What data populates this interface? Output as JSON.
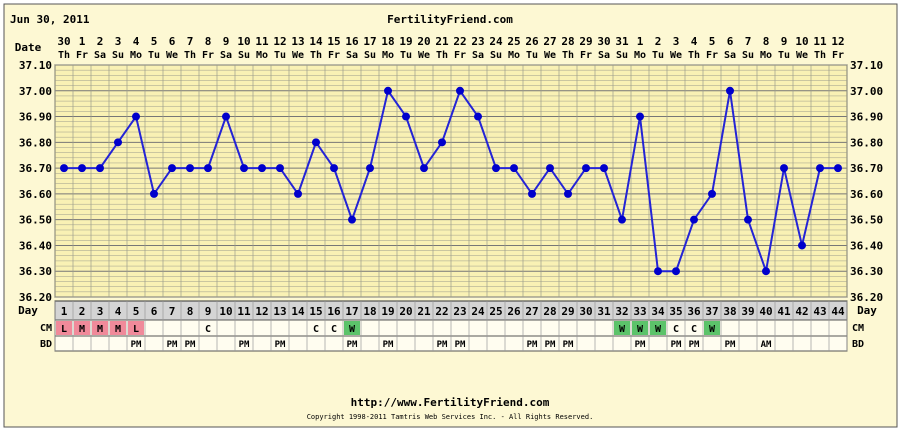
{
  "header": {
    "date": "Jun 30, 2011",
    "site": "FertilityFriend.com"
  },
  "footer": {
    "url": "http://www.FertilityFriend.com",
    "copyright": "Copyright 1998-2011 Tamtris Web Services Inc. - All Rights Reserved."
  },
  "row_labels": {
    "date": "Date",
    "day": "Day",
    "cm": "CM",
    "bd": "BD"
  },
  "colors": {
    "page_bg": "#fdf8d3",
    "plot_bg": "#f9f1b4",
    "grid": "#9c9c8c",
    "line": "#2424d6",
    "point": "#0000cc",
    "day_row": "#d4d4d4",
    "cm_red": "#f08a9a",
    "cm_green": "#5cc36a",
    "row_bg": "#fffdf0",
    "header_blue": "#0000cc"
  },
  "chart_data": {
    "type": "line",
    "title": "",
    "ylim": [
      36.2,
      37.1
    ],
    "yticks": [
      "37.10",
      "37.00",
      "36.90",
      "36.80",
      "36.70",
      "36.60",
      "36.50",
      "36.40",
      "36.30",
      "36.20"
    ],
    "dates": [
      "30",
      "1",
      "2",
      "3",
      "4",
      "5",
      "6",
      "7",
      "8",
      "9",
      "10",
      "11",
      "12",
      "13",
      "14",
      "15",
      "16",
      "17",
      "18",
      "19",
      "20",
      "21",
      "22",
      "23",
      "24",
      "25",
      "26",
      "27",
      "28",
      "29",
      "30",
      "31",
      "1",
      "2",
      "3",
      "4",
      "5",
      "6",
      "7",
      "8",
      "9",
      "10",
      "11",
      "12"
    ],
    "weekdays": [
      "Th",
      "Fr",
      "Sa",
      "Su",
      "Mo",
      "Tu",
      "We",
      "Th",
      "Fr",
      "Sa",
      "Su",
      "Mo",
      "Tu",
      "We",
      "Th",
      "Fr",
      "Sa",
      "Su",
      "Mo",
      "Tu",
      "We",
      "Th",
      "Fr",
      "Sa",
      "Su",
      "Mo",
      "Tu",
      "We",
      "Th",
      "Fr",
      "Sa",
      "Su",
      "Mo",
      "Tu",
      "We",
      "Th",
      "Fr",
      "Sa",
      "Su",
      "Mo",
      "Tu",
      "We",
      "Th",
      "Fr"
    ],
    "days": [
      "1",
      "2",
      "3",
      "4",
      "5",
      "6",
      "7",
      "8",
      "9",
      "10",
      "11",
      "12",
      "13",
      "14",
      "15",
      "16",
      "17",
      "18",
      "19",
      "20",
      "21",
      "22",
      "23",
      "24",
      "25",
      "26",
      "27",
      "28",
      "29",
      "30",
      "31",
      "32",
      "33",
      "34",
      "35",
      "36",
      "37",
      "38",
      "39",
      "40",
      "41",
      "42",
      "43",
      "44"
    ],
    "temps": [
      36.7,
      36.7,
      36.7,
      36.8,
      36.9,
      36.6,
      36.7,
      36.7,
      36.7,
      36.9,
      36.7,
      36.7,
      36.7,
      36.6,
      36.8,
      36.7,
      36.5,
      36.7,
      37.0,
      36.9,
      36.7,
      36.8,
      37.0,
      36.9,
      36.7,
      36.7,
      36.6,
      36.7,
      36.6,
      36.7,
      36.7,
      36.5,
      36.9,
      36.3,
      36.3,
      36.5,
      36.6,
      37.0,
      36.5,
      36.3,
      36.7,
      36.4,
      36.7,
      36.7
    ],
    "cm": [
      {
        "day": 1,
        "code": "L",
        "color": "red"
      },
      {
        "day": 2,
        "code": "M",
        "color": "red"
      },
      {
        "day": 3,
        "code": "M",
        "color": "red"
      },
      {
        "day": 4,
        "code": "M",
        "color": "red"
      },
      {
        "day": 5,
        "code": "L",
        "color": "red"
      },
      {
        "day": 9,
        "code": "C",
        "color": "none"
      },
      {
        "day": 15,
        "code": "C",
        "color": "none"
      },
      {
        "day": 16,
        "code": "C",
        "color": "none"
      },
      {
        "day": 17,
        "code": "W",
        "color": "green"
      },
      {
        "day": 32,
        "code": "W",
        "color": "green"
      },
      {
        "day": 33,
        "code": "W",
        "color": "green"
      },
      {
        "day": 34,
        "code": "W",
        "color": "green"
      },
      {
        "day": 35,
        "code": "C",
        "color": "none"
      },
      {
        "day": 36,
        "code": "C",
        "color": "none"
      },
      {
        "day": 37,
        "code": "W",
        "color": "green"
      }
    ],
    "bd": [
      {
        "day": 5,
        "label": "PM"
      },
      {
        "day": 7,
        "label": "PM"
      },
      {
        "day": 8,
        "label": "PM"
      },
      {
        "day": 11,
        "label": "PM"
      },
      {
        "day": 13,
        "label": "PM"
      },
      {
        "day": 17,
        "label": "PM"
      },
      {
        "day": 19,
        "label": "PM"
      },
      {
        "day": 22,
        "label": "PM"
      },
      {
        "day": 23,
        "label": "PM"
      },
      {
        "day": 27,
        "label": "PM"
      },
      {
        "day": 28,
        "label": "PM"
      },
      {
        "day": 29,
        "label": "PM"
      },
      {
        "day": 33,
        "label": "PM"
      },
      {
        "day": 35,
        "label": "PM"
      },
      {
        "day": 36,
        "label": "PM"
      },
      {
        "day": 38,
        "label": "PM"
      },
      {
        "day": 40,
        "label": "AM"
      }
    ]
  }
}
